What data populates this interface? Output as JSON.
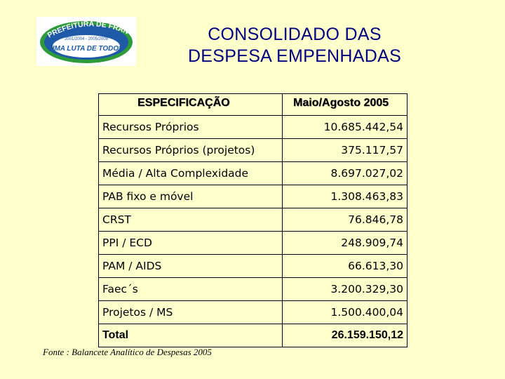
{
  "logo": {
    "top_text": "PREFEITURA DE FRANCA",
    "subtitle": "2001/2004 - 2005/2008",
    "slogan": "UMA LUTA DE TODOS"
  },
  "title": {
    "line1": "CONSOLIDADO DAS",
    "line2": "DESPESA EMPENHADAS"
  },
  "table": {
    "header_spec": "ESPECIFICAÇÃO",
    "header_period": "Maio/Agosto 2005",
    "rows": [
      {
        "label": "Recursos Próprios",
        "value": "10.685.442,54"
      },
      {
        "label": "Recursos Próprios (projetos)",
        "value": "375.117,57"
      },
      {
        "label": "Média / Alta Complexidade",
        "value": "8.697.027,02"
      },
      {
        "label": "PAB fixo e móvel",
        "value": "1.308.463,83"
      },
      {
        "label": "CRST",
        "value": "76.846,78"
      },
      {
        "label": "PPI / ECD",
        "value": "248.909,74"
      },
      {
        "label": "PAM / AIDS",
        "value": "66.613,30"
      },
      {
        "label": "Faec´s",
        "value": "3.200.329,30"
      },
      {
        "label": "Projetos /  MS",
        "value": "1.500.400,04"
      }
    ],
    "total_label": "Total",
    "total_value": "26.159.150,12"
  },
  "footer": "Fonte : Balancete Analítico de Despesas 2005",
  "colors": {
    "background": "#ffffcc",
    "title": "#000080",
    "logo_blue": "#1e5aa8",
    "logo_green": "#2e9b3a"
  }
}
